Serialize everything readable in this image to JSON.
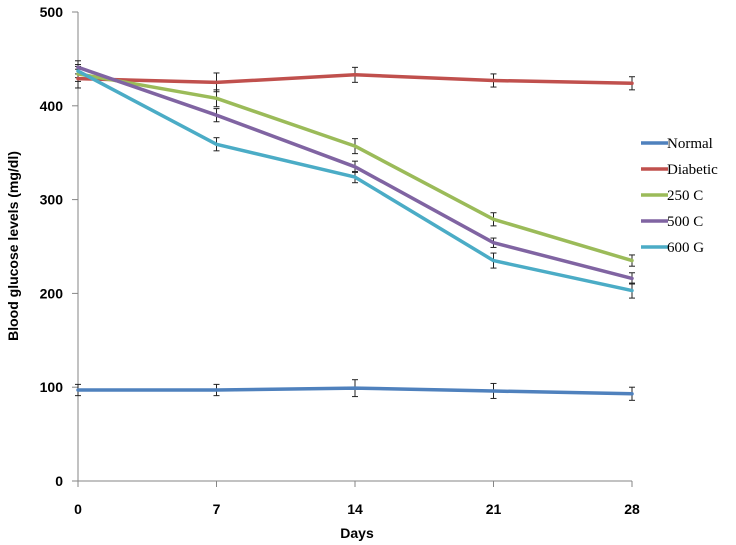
{
  "chart_data": {
    "type": "line",
    "title": "",
    "xlabel": "Days",
    "ylabel": "Blood glucose levels (mg/dl)",
    "x": [
      0,
      7,
      14,
      21,
      28
    ],
    "xlim": [
      0,
      28
    ],
    "ylim": [
      0,
      500
    ],
    "yticks": [
      0,
      100,
      200,
      300,
      400,
      500
    ],
    "grid": false,
    "legend_position": "right",
    "series": [
      {
        "name": "Normal",
        "color": "#4f81bd",
        "values": [
          97,
          97,
          99,
          96,
          93
        ],
        "errors": [
          6,
          6,
          9,
          8,
          7
        ]
      },
      {
        "name": "Diabetic",
        "color": "#c0504d",
        "values": [
          429,
          425,
          433,
          427,
          424
        ],
        "errors": [
          10,
          10,
          8,
          7,
          7
        ]
      },
      {
        "name": "250 C",
        "color": "#9bbb59",
        "values": [
          434,
          408,
          357,
          279,
          235
        ],
        "errors": [
          8,
          9,
          8,
          7,
          6
        ]
      },
      {
        "name": "500 C",
        "color": "#8064a2",
        "values": [
          441,
          390,
          335,
          254,
          216
        ],
        "errors": [
          7,
          7,
          6,
          5,
          6
        ]
      },
      {
        "name": "600 G",
        "color": "#4bacc6",
        "values": [
          437,
          359,
          324,
          235,
          203
        ],
        "errors": [
          7,
          7,
          6,
          8,
          8
        ]
      }
    ]
  }
}
